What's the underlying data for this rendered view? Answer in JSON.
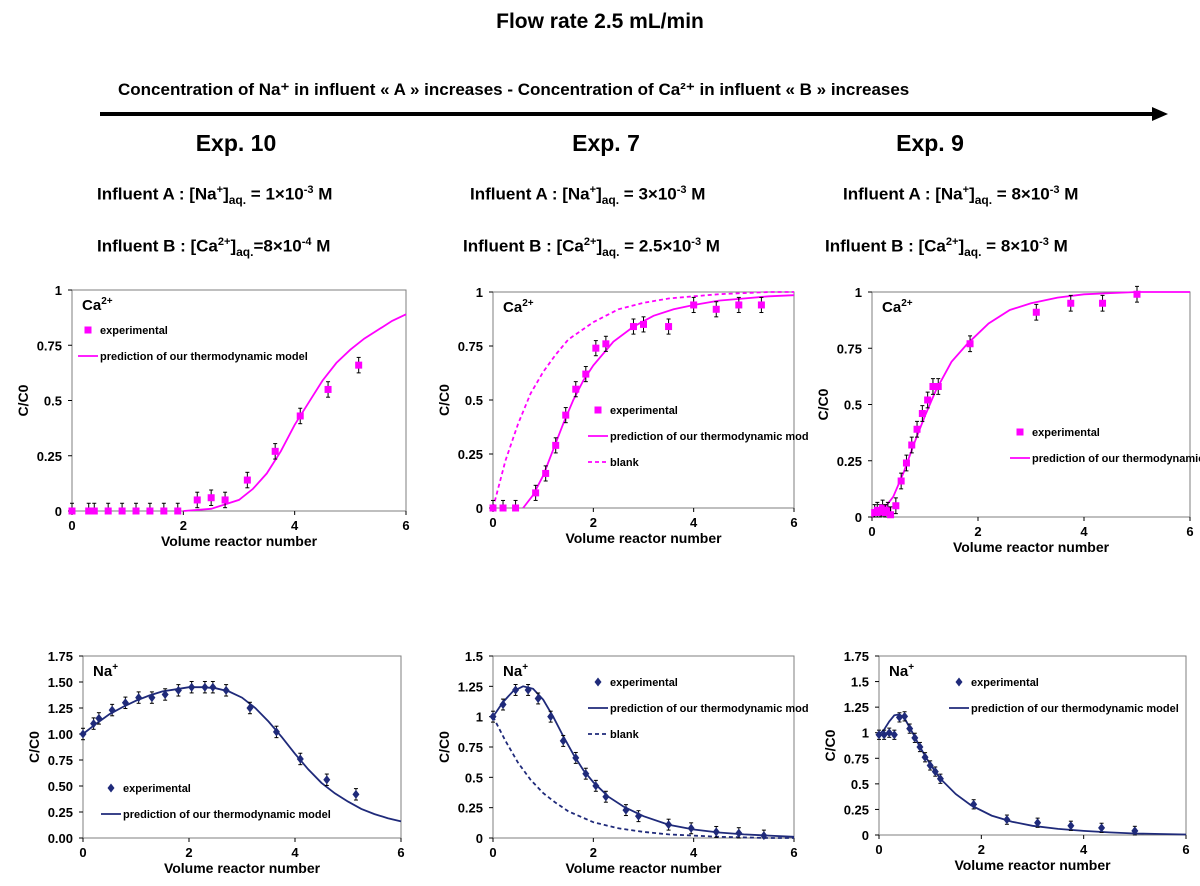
{
  "title": "Flow rate 2.5 mL/min",
  "banner": "Concentration of Na⁺ in influent « A » increases - Concentration of Ca²⁺ in influent « B » increases",
  "experiments": [
    {
      "name": "Exp. 10",
      "influent_a": {
        "label": "Influent A : [Na",
        "sup": "+",
        "close": "]",
        "sub": "aq.",
        "value": " = 1×10",
        "exp": "-3",
        "unit": " M"
      },
      "influent_b": {
        "label": "Influent B : [Ca",
        "sup": "2+",
        "close": "]",
        "sub": "aq.",
        "value": "=8×10",
        "exp": "-4",
        "unit": " M"
      }
    },
    {
      "name": "Exp. 7",
      "influent_a": {
        "label": "Influent A : [Na",
        "sup": "+",
        "close": "]",
        "sub": "aq.",
        "value": " = 3×10",
        "exp": "-3",
        "unit": " M"
      },
      "influent_b": {
        "label": "Influent B : [Ca",
        "sup": "2+",
        "close": "]",
        "sub": "aq.",
        "value": " = 2.5×10",
        "exp": "-3",
        "unit": " M"
      }
    },
    {
      "name": "Exp. 9",
      "influent_a": {
        "label": "Influent A : [Na",
        "sup": "+",
        "close": "]",
        "sub": "aq.",
        "value": " = 8×10",
        "exp": "-3",
        "unit": " M"
      },
      "influent_b": {
        "label": "Influent B : [Ca",
        "sup": "2+",
        "close": "]",
        "sub": "aq.",
        "value": " = 8×10",
        "exp": "-3",
        "unit": " M"
      }
    }
  ],
  "colors": {
    "ca": "#ff00ff",
    "na": "#1f2a7a",
    "axis": "#000000"
  },
  "chart_data": [
    {
      "id": "exp10-ca",
      "type": "scatter",
      "ion": "Ca",
      "ion_sup": "2+",
      "xlabel": "Volume reactor number",
      "ylabel": "C/C0",
      "xlim": [
        0,
        6
      ],
      "ylim": [
        0,
        1
      ],
      "xticks": [
        "0",
        "2",
        "4",
        "6"
      ],
      "xtick_values": [
        0,
        2,
        4,
        6
      ],
      "yticks": [
        "0",
        "0.25",
        "0.5",
        "0.75",
        "1"
      ],
      "ytick_values": [
        0,
        0.25,
        0.5,
        0.75,
        1
      ],
      "legend_position": "top-left",
      "series": [
        {
          "name": "experimental",
          "kind": "points",
          "marker": "square",
          "color": "#ff00ff",
          "x": [
            0,
            0.3,
            0.4,
            0.65,
            0.9,
            1.15,
            1.4,
            1.65,
            1.9,
            2.25,
            2.5,
            2.75,
            3.15,
            3.65,
            4.1,
            4.6,
            5.15
          ],
          "y": [
            0,
            0,
            0,
            0,
            0,
            0,
            0,
            0,
            0,
            0.05,
            0.06,
            0.05,
            0.14,
            0.27,
            0.43,
            0.55,
            0.66
          ],
          "err": 0.035
        },
        {
          "name": "prediction of our thermodynamic model",
          "kind": "line",
          "dash": "solid",
          "color": "#ff00ff",
          "x": [
            2.0,
            2.5,
            3.0,
            3.25,
            3.5,
            3.75,
            4.0,
            4.25,
            4.5,
            4.75,
            5.0,
            5.25,
            5.5,
            5.75,
            6.0
          ],
          "y": [
            0,
            0.01,
            0.05,
            0.1,
            0.17,
            0.27,
            0.39,
            0.49,
            0.59,
            0.67,
            0.73,
            0.78,
            0.82,
            0.86,
            0.89
          ]
        }
      ]
    },
    {
      "id": "exp7-ca",
      "type": "scatter",
      "ion": "Ca",
      "ion_sup": "2+",
      "xlabel": "Volume reactor number",
      "ylabel": "C/C0",
      "xlim": [
        0,
        6
      ],
      "ylim": [
        0,
        1
      ],
      "xticks": [
        "0",
        "2",
        "4",
        "6"
      ],
      "xtick_values": [
        0,
        2,
        4,
        6
      ],
      "yticks": [
        "0",
        "0.25",
        "0.5",
        "0.75",
        "1"
      ],
      "ytick_values": [
        0,
        0.25,
        0.5,
        0.75,
        1
      ],
      "legend_position": "center-right",
      "series": [
        {
          "name": "experimental",
          "kind": "points",
          "marker": "square",
          "color": "#ff00ff",
          "x": [
            0,
            0.2,
            0.45,
            0.85,
            1.05,
            1.25,
            1.45,
            1.65,
            1.85,
            2.05,
            2.25,
            2.8,
            3.0,
            3.5,
            4.0,
            4.45,
            4.9,
            5.35
          ],
          "y": [
            0,
            0,
            0,
            0.07,
            0.16,
            0.29,
            0.43,
            0.55,
            0.62,
            0.74,
            0.76,
            0.84,
            0.85,
            0.84,
            0.94,
            0.92,
            0.94,
            0.94
          ],
          "err": 0.035
        },
        {
          "name": "prediction of our thermodynamic model",
          "kind": "line",
          "dash": "solid",
          "color": "#ff00ff",
          "x": [
            0.6,
            0.8,
            1.0,
            1.2,
            1.4,
            1.6,
            1.8,
            2.0,
            2.4,
            2.8,
            3.2,
            3.6,
            4.0,
            4.5,
            5.0,
            5.5,
            6.0
          ],
          "y": [
            0,
            0.06,
            0.15,
            0.27,
            0.39,
            0.5,
            0.59,
            0.66,
            0.77,
            0.84,
            0.89,
            0.92,
            0.94,
            0.96,
            0.97,
            0.98,
            0.985
          ]
        },
        {
          "name": "blank",
          "kind": "line",
          "dash": "dashed",
          "color": "#ff00ff",
          "x": [
            0,
            0.25,
            0.5,
            0.75,
            1.0,
            1.25,
            1.5,
            2.0,
            2.5,
            3.0,
            3.5,
            4.0,
            4.5,
            5.0,
            5.5,
            6.0
          ],
          "y": [
            0,
            0.22,
            0.39,
            0.53,
            0.63,
            0.71,
            0.78,
            0.86,
            0.92,
            0.95,
            0.97,
            0.98,
            0.99,
            0.995,
            1.0,
            1.0
          ]
        }
      ]
    },
    {
      "id": "exp9-ca",
      "type": "scatter",
      "ion": "Ca",
      "ion_sup": "2+",
      "xlabel": "Volume reactor number",
      "ylabel": "C/C0",
      "xlim": [
        0,
        6
      ],
      "ylim": [
        0,
        1
      ],
      "xticks": [
        "0",
        "2",
        "4",
        "6"
      ],
      "xtick_values": [
        0,
        2,
        4,
        6
      ],
      "yticks": [
        "0",
        "0.25",
        "0.5",
        "0.75",
        "1"
      ],
      "ytick_values": [
        0,
        0.25,
        0.5,
        0.75,
        1
      ],
      "legend_position": "center-right",
      "series": [
        {
          "name": "experimental",
          "kind": "points",
          "marker": "square",
          "color": "#ff00ff",
          "x": [
            0.05,
            0.1,
            0.15,
            0.2,
            0.25,
            0.3,
            0.35,
            0.45,
            0.55,
            0.65,
            0.75,
            0.85,
            0.95,
            1.05,
            1.15,
            1.25,
            1.85,
            3.1,
            3.75,
            4.35,
            5.0
          ],
          "y": [
            0.02,
            0.03,
            0.02,
            0.04,
            0.02,
            0.03,
            0.01,
            0.05,
            0.16,
            0.24,
            0.32,
            0.39,
            0.46,
            0.52,
            0.58,
            0.58,
            0.77,
            0.91,
            0.95,
            0.95,
            0.99
          ],
          "err": 0.035
        },
        {
          "name": "prediction of our thermodynamic model",
          "kind": "line",
          "dash": "solid",
          "color": "#ff00ff",
          "x": [
            0,
            0.2,
            0.4,
            0.6,
            0.8,
            1.0,
            1.2,
            1.5,
            1.8,
            2.2,
            2.6,
            3.0,
            3.5,
            4.0,
            4.5,
            5.0,
            5.5,
            6.0
          ],
          "y": [
            0,
            0.03,
            0.09,
            0.2,
            0.33,
            0.45,
            0.56,
            0.69,
            0.77,
            0.86,
            0.92,
            0.95,
            0.975,
            0.99,
            0.995,
            1.0,
            1.0,
            1.0
          ]
        }
      ]
    },
    {
      "id": "exp10-na",
      "type": "scatter",
      "ion": "Na",
      "ion_sup": "+",
      "xlabel": "Volume reactor number",
      "ylabel": "C/C0",
      "xlim": [
        0,
        6
      ],
      "ylim": [
        0,
        1.75
      ],
      "xticks": [
        "0",
        "2",
        "4",
        "6"
      ],
      "xtick_values": [
        0,
        2,
        4,
        6
      ],
      "yticks": [
        "0.00",
        "0.25",
        "0.50",
        "0.75",
        "1.00",
        "1.25",
        "1.50",
        "1.75"
      ],
      "ytick_values": [
        0,
        0.25,
        0.5,
        0.75,
        1.0,
        1.25,
        1.5,
        1.75
      ],
      "legend_position": "bottom-left",
      "series": [
        {
          "name": "experimental",
          "kind": "points",
          "marker": "diamond",
          "color": "#1f2a7a",
          "x": [
            0,
            0.2,
            0.3,
            0.55,
            0.8,
            1.05,
            1.3,
            1.55,
            1.8,
            2.05,
            2.3,
            2.45,
            2.7,
            3.15,
            3.65,
            4.1,
            4.6,
            5.15
          ],
          "y": [
            1.0,
            1.1,
            1.15,
            1.23,
            1.3,
            1.35,
            1.35,
            1.38,
            1.42,
            1.45,
            1.45,
            1.45,
            1.42,
            1.25,
            1.02,
            0.76,
            0.56,
            0.42
          ],
          "err": 0.055
        },
        {
          "name": "prediction of our thermodynamic model",
          "kind": "line",
          "dash": "solid",
          "color": "#1f2a7a",
          "x": [
            0,
            0.25,
            0.5,
            0.75,
            1.0,
            1.25,
            1.5,
            1.75,
            2.0,
            2.25,
            2.5,
            2.75,
            3.0,
            3.25,
            3.5,
            3.75,
            4.0,
            4.25,
            4.5,
            4.75,
            5.0,
            5.25,
            5.5,
            5.75,
            6.0
          ],
          "y": [
            1.0,
            1.1,
            1.19,
            1.26,
            1.32,
            1.37,
            1.41,
            1.43,
            1.45,
            1.45,
            1.44,
            1.41,
            1.35,
            1.25,
            1.12,
            0.97,
            0.81,
            0.66,
            0.53,
            0.43,
            0.35,
            0.28,
            0.23,
            0.19,
            0.16
          ]
        }
      ]
    },
    {
      "id": "exp7-na",
      "type": "scatter",
      "ion": "Na",
      "ion_sup": "+",
      "xlabel": "Volume reactor number",
      "ylabel": "C/C0",
      "xlim": [
        0,
        6
      ],
      "ylim": [
        0,
        1.5
      ],
      "xticks": [
        "0",
        "2",
        "4",
        "6"
      ],
      "xtick_values": [
        0,
        2,
        4,
        6
      ],
      "yticks": [
        "0",
        "0.25",
        "0.5",
        "0.75",
        "1",
        "1.25",
        "1.5"
      ],
      "ytick_values": [
        0,
        0.25,
        0.5,
        0.75,
        1,
        1.25,
        1.5
      ],
      "legend_position": "top-right",
      "series": [
        {
          "name": "experimental",
          "kind": "points",
          "marker": "diamond",
          "color": "#1f2a7a",
          "x": [
            0,
            0.2,
            0.45,
            0.7,
            0.9,
            1.15,
            1.4,
            1.65,
            1.85,
            2.05,
            2.25,
            2.65,
            2.9,
            3.5,
            3.95,
            4.45,
            4.9,
            5.4
          ],
          "y": [
            1.0,
            1.1,
            1.22,
            1.22,
            1.15,
            1.0,
            0.8,
            0.66,
            0.53,
            0.43,
            0.34,
            0.23,
            0.18,
            0.11,
            0.08,
            0.05,
            0.04,
            0.02
          ],
          "err": 0.045
        },
        {
          "name": "prediction of our thermodynamic model",
          "kind": "line",
          "dash": "solid",
          "color": "#1f2a7a",
          "x": [
            0,
            0.2,
            0.4,
            0.6,
            0.8,
            1.0,
            1.2,
            1.4,
            1.6,
            1.8,
            2.0,
            2.3,
            2.6,
            3.0,
            3.5,
            4.0,
            4.5,
            5.0,
            5.5,
            6.0
          ],
          "y": [
            1.0,
            1.12,
            1.21,
            1.25,
            1.23,
            1.14,
            1.0,
            0.84,
            0.69,
            0.56,
            0.46,
            0.34,
            0.26,
            0.18,
            0.11,
            0.07,
            0.045,
            0.03,
            0.02,
            0.01
          ]
        },
        {
          "name": "blank",
          "kind": "line",
          "dash": "dashed",
          "color": "#1f2a7a",
          "x": [
            0,
            0.25,
            0.5,
            0.75,
            1.0,
            1.25,
            1.5,
            2.0,
            2.5,
            3.0,
            3.5,
            4.0,
            4.5,
            5.0,
            5.5,
            6.0
          ],
          "y": [
            1.0,
            0.8,
            0.62,
            0.48,
            0.37,
            0.29,
            0.22,
            0.13,
            0.08,
            0.05,
            0.03,
            0.02,
            0.01,
            0.005,
            0.0,
            0.0
          ]
        }
      ]
    },
    {
      "id": "exp9-na",
      "type": "scatter",
      "ion": "Na",
      "ion_sup": "+",
      "xlabel": "Volume reactor number",
      "ylabel": "C/C0",
      "xlim": [
        0,
        6
      ],
      "ylim": [
        0,
        1.75
      ],
      "xticks": [
        "0",
        "2",
        "4",
        "6"
      ],
      "xtick_values": [
        0,
        2,
        4,
        6
      ],
      "yticks": [
        "0",
        "0.25",
        "0.5",
        "0.75",
        "1",
        "1.25",
        "1.5",
        "1.75"
      ],
      "ytick_values": [
        0,
        0.25,
        0.5,
        0.75,
        1,
        1.25,
        1.5,
        1.75
      ],
      "legend_position": "top-right",
      "series": [
        {
          "name": "experimental",
          "kind": "points",
          "marker": "diamond",
          "color": "#1f2a7a",
          "x": [
            0,
            0.1,
            0.2,
            0.3,
            0.4,
            0.5,
            0.6,
            0.7,
            0.8,
            0.9,
            1.0,
            1.1,
            1.2,
            1.85,
            2.5,
            3.1,
            3.75,
            4.35,
            5.0
          ],
          "y": [
            0.98,
            0.98,
            1.0,
            0.98,
            1.15,
            1.16,
            1.04,
            0.95,
            0.86,
            0.76,
            0.68,
            0.62,
            0.55,
            0.3,
            0.15,
            0.12,
            0.09,
            0.07,
            0.04
          ],
          "err": 0.045
        },
        {
          "name": "prediction of our thermodynamic model",
          "kind": "line",
          "dash": "solid",
          "color": "#1f2a7a",
          "x": [
            0,
            0.1,
            0.2,
            0.3,
            0.4,
            0.5,
            0.6,
            0.7,
            0.8,
            1.0,
            1.2,
            1.5,
            1.8,
            2.2,
            2.6,
            3.0,
            3.5,
            4.0,
            4.5,
            5.0,
            5.5,
            6.0
          ],
          "y": [
            0.98,
            1.03,
            1.11,
            1.17,
            1.18,
            1.14,
            1.05,
            0.96,
            0.86,
            0.69,
            0.55,
            0.4,
            0.29,
            0.19,
            0.13,
            0.09,
            0.06,
            0.04,
            0.025,
            0.015,
            0.01,
            0.005
          ]
        }
      ]
    }
  ]
}
